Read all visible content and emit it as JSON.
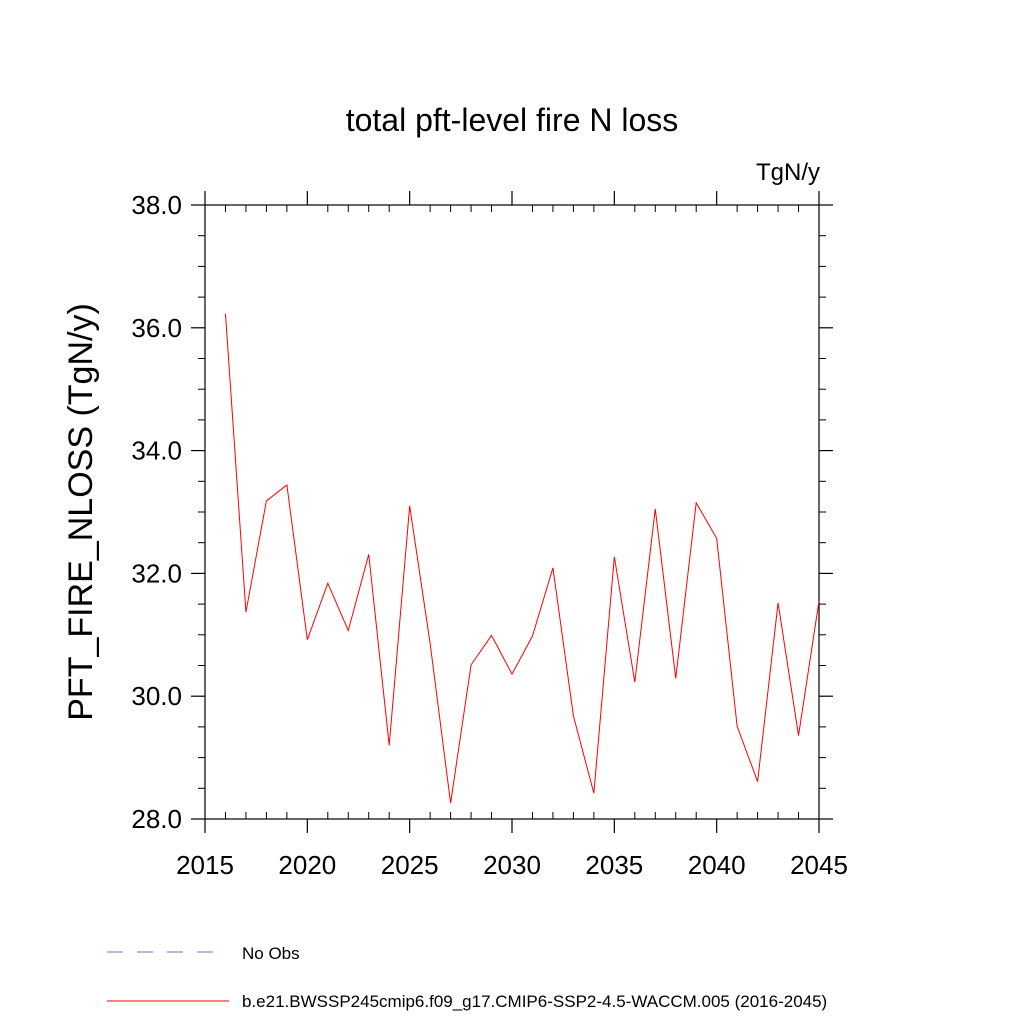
{
  "chart_data": {
    "type": "line",
    "title": "total pft-level fire N loss",
    "units_label": "TgN/y",
    "ylabel": "PFT_FIRE_NLOSS  (TgN/y)",
    "xlabel": "",
    "xlim": [
      2015,
      2045
    ],
    "ylim": [
      28.0,
      38.0
    ],
    "x_ticks": [
      2015,
      2020,
      2025,
      2030,
      2035,
      2040,
      2045
    ],
    "x_tick_labels": [
      "2015",
      "2020",
      "2025",
      "2030",
      "2035",
      "2040",
      "2045"
    ],
    "y_ticks": [
      28.0,
      30.0,
      32.0,
      34.0,
      36.0,
      38.0
    ],
    "y_tick_labels": [
      "28.0",
      "30.0",
      "32.0",
      "34.0",
      "36.0",
      "38.0"
    ],
    "grid": false,
    "legend_position": "bottom-left",
    "series": [
      {
        "name": "b.e21.BWSSP245cmip6.f09_g17.CMIP6-SSP2-4.5-WACCM.005 (2016-2045)",
        "color": "#ff0000",
        "style": "solid",
        "x": [
          2016,
          2017,
          2018,
          2019,
          2020,
          2021,
          2022,
          2023,
          2024,
          2025,
          2026,
          2027,
          2028,
          2029,
          2030,
          2031,
          2032,
          2033,
          2034,
          2035,
          2036,
          2037,
          2038,
          2039,
          2040,
          2041,
          2042,
          2043,
          2044,
          2045
        ],
        "values": [
          36.23,
          31.37,
          33.18,
          33.44,
          30.92,
          31.84,
          31.07,
          32.31,
          29.2,
          33.1,
          30.86,
          28.26,
          30.51,
          30.99,
          30.36,
          30.98,
          32.09,
          29.68,
          28.42,
          32.27,
          30.23,
          33.05,
          30.29,
          33.15,
          32.57,
          29.51,
          28.61,
          31.52,
          29.36,
          31.55
        ]
      },
      {
        "name": "No Obs",
        "color": "#7070c0",
        "style": "dashed",
        "x": [],
        "values": []
      }
    ]
  }
}
